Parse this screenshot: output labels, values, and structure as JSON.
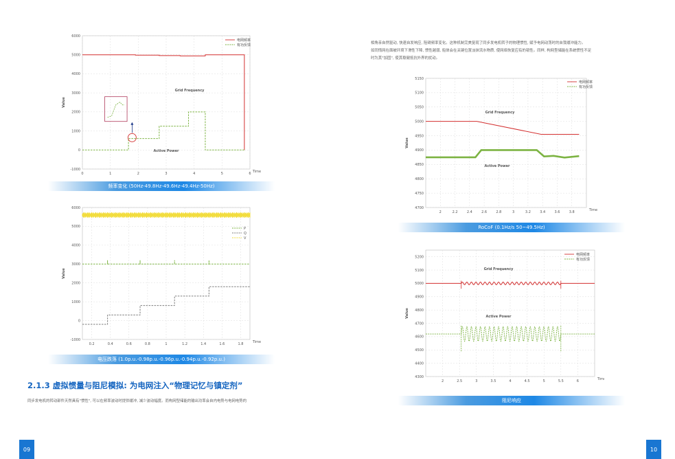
{
  "page": {
    "left_number": "09",
    "right_number": "10"
  },
  "colors": {
    "grid_freq": "#d32f2f",
    "active_power": "#7cb342",
    "yellow": "#f2dc3a",
    "gray": "#7d7d7d",
    "accent": "#1976d2"
  },
  "intro_text": {
    "line1": "相角亲自然驱动, 快速自发响应, 阻碍频率变化。这种机制完美复现了同步发电机转子的物理惯性, 赋予电网动荡时的自我缓冲能力。",
    "line2": "如同惰网在面被环境下滑性下降, 惯性越弱, 船体会在关键位置淡抹流水物质, 使网络恢复应有的韧性。同样, 构网型储能在系统惯性不足",
    "line3": "时为其\"加固\", 使其稳健抵抗外界的扰动。"
  },
  "section": {
    "title": "2.1.3 虚拟惯量与阻尼模拟: 为电网注入“物理记忆与镇定剂”",
    "body": "同步发电机的转动部件天然具有\"惯性\", 可以在频率波动时提供缓冲, 减少波动幅度。而构网型储能的输出功率会自内电势与电网电势的"
  },
  "captions": {
    "freq_change": "频率变化 (50Hz-49.8Hz-49.6Hz-49.4Hz-50Hz)",
    "voltage_sag": "电压跌落 (1.0p.u.-0.98p.u.-0.96p.u.-0.94p.u.-0.92p.u.)",
    "rocof": "RoCoF (0.1Hz/s 50~49.5Hz)",
    "damping": "阻尼响应"
  },
  "chart_data": [
    {
      "id": "freq_change",
      "type": "line",
      "xlabel": "Time",
      "ylabel": "Value",
      "xlim": [
        0,
        6
      ],
      "ylim": [
        -1000,
        6000
      ],
      "x_ticks": [
        "0",
        "1",
        "2",
        "3",
        "4",
        "5",
        "6"
      ],
      "y_ticks": [
        "-1000",
        "0",
        "1000",
        "2000",
        "3000",
        "4000",
        "5000",
        "6000"
      ],
      "legend": [
        "电网频率",
        "有功反馈"
      ],
      "annotations": [
        "Grid Frequency",
        "Active Power"
      ],
      "series": [
        {
          "name": "电网频率",
          "style": "solid",
          "color": "#d32f2f",
          "points": [
            [
              0,
              5000
            ],
            [
              1.9,
              5000
            ],
            [
              1.9,
              4980
            ],
            [
              2.75,
              4980
            ],
            [
              2.75,
              4960
            ],
            [
              3.5,
              4960
            ],
            [
              3.5,
              4940
            ],
            [
              4.4,
              4940
            ],
            [
              4.4,
              5000
            ],
            [
              5.8,
              5000
            ],
            [
              5.8,
              0
            ]
          ]
        },
        {
          "name": "有功反馈",
          "style": "dashed",
          "color": "#7cb342",
          "points": [
            [
              0,
              0
            ],
            [
              1.65,
              0
            ],
            [
              1.65,
              600
            ],
            [
              2.75,
              600
            ],
            [
              2.75,
              1250
            ],
            [
              3.8,
              1250
            ],
            [
              3.8,
              2000
            ],
            [
              4.4,
              2000
            ],
            [
              4.4,
              0
            ],
            [
              5.8,
              0
            ]
          ]
        }
      ]
    },
    {
      "id": "voltage_sag",
      "type": "line",
      "xlabel": "Time",
      "ylabel": "Value",
      "xlim": [
        0.1,
        1.9
      ],
      "ylim": [
        -1000,
        6000
      ],
      "x_ticks": [
        "0.2",
        "0.4",
        "0.6",
        "0.8",
        "1",
        "1.2",
        "1.4",
        "1.6",
        "1.8"
      ],
      "y_ticks": [
        "-1000",
        "0",
        "1000",
        "2000",
        "3000",
        "4000",
        "5000",
        "6000"
      ],
      "legend": [
        "P",
        "Q",
        "V"
      ],
      "series": [
        {
          "name": "V",
          "style": "noisy",
          "color": "#f2dc3a",
          "points": [
            [
              0.1,
              5600
            ],
            [
              1.9,
              5600
            ]
          ]
        },
        {
          "name": "P",
          "style": "dashed",
          "color": "#7cb342",
          "points": [
            [
              0.1,
              3000
            ],
            [
              0.37,
              3000
            ],
            [
              0.37,
              3200
            ],
            [
              0.37,
              3000
            ],
            [
              0.72,
              3000
            ],
            [
              0.72,
              3200
            ],
            [
              0.72,
              3000
            ],
            [
              1.09,
              3000
            ],
            [
              1.09,
              3200
            ],
            [
              1.09,
              3000
            ],
            [
              1.46,
              3000
            ],
            [
              1.46,
              3200
            ],
            [
              1.46,
              3000
            ],
            [
              1.9,
              3000
            ]
          ]
        },
        {
          "name": "Q",
          "style": "dashed",
          "color": "#7d7d7d",
          "points": [
            [
              0.1,
              -200
            ],
            [
              0.37,
              -200
            ],
            [
              0.37,
              300
            ],
            [
              0.72,
              300
            ],
            [
              0.72,
              800
            ],
            [
              1.09,
              800
            ],
            [
              1.09,
              1300
            ],
            [
              1.46,
              1300
            ],
            [
              1.46,
              1800
            ],
            [
              1.9,
              1800
            ]
          ]
        }
      ]
    },
    {
      "id": "rocof",
      "type": "line",
      "xlabel": "Time",
      "ylabel": "Value",
      "xlim": [
        1.8,
        4.0
      ],
      "ylim": [
        4700,
        5150
      ],
      "x_ticks": [
        "2",
        "2.2",
        "2.4",
        "2.6",
        "2.8",
        "3",
        "3.2",
        "3.4",
        "3.6",
        "3.8"
      ],
      "y_ticks": [
        "4700",
        "4750",
        "4800",
        "4850",
        "4900",
        "4950",
        "5000",
        "5050",
        "5100",
        "5150"
      ],
      "legend": [
        "电网频率",
        "有功反馈"
      ],
      "annotations": [
        "Grid Frequency",
        "Active Power"
      ],
      "series": [
        {
          "name": "电网频率",
          "style": "solid",
          "color": "#d32f2f",
          "points": [
            [
              1.8,
              5000
            ],
            [
              2.5,
              5000
            ],
            [
              3.38,
              4955
            ],
            [
              3.9,
              4955
            ]
          ]
        },
        {
          "name": "有功反馈",
          "style": "thick",
          "color": "#7cb342",
          "points": [
            [
              1.8,
              4875
            ],
            [
              2.48,
              4875
            ],
            [
              2.56,
              4900
            ],
            [
              3.32,
              4900
            ],
            [
              3.42,
              4878
            ],
            [
              3.55,
              4880
            ],
            [
              3.7,
              4874
            ],
            [
              3.9,
              4879
            ]
          ]
        }
      ]
    },
    {
      "id": "damping",
      "type": "line",
      "xlabel": "Time",
      "ylabel": "Value",
      "xlim": [
        1.5,
        6.5
      ],
      "ylim": [
        4300,
        5250
      ],
      "x_ticks": [
        "2",
        "2.5",
        "3",
        "3.5",
        "4",
        "4.5",
        "5",
        "5.5",
        "6"
      ],
      "y_ticks": [
        "4300",
        "4400",
        "4500",
        "4600",
        "4700",
        "4800",
        "4900",
        "5000",
        "5100",
        "5200"
      ],
      "legend": [
        "电网频率",
        "有功反馈"
      ],
      "annotations": [
        "Grid Frequency",
        "Active Power"
      ],
      "series": [
        {
          "name": "电网频率",
          "style": "wavy",
          "color": "#d32f2f",
          "points": [
            [
              1.5,
              5000
            ],
            [
              6.5,
              5000
            ]
          ],
          "osc": {
            "from": 2.55,
            "to": 5.5,
            "amp": 10,
            "cycles": 22
          }
        },
        {
          "name": "有功反馈",
          "style": "wavy-dashed",
          "color": "#7cb342",
          "points": [
            [
              1.5,
              4620
            ],
            [
              6.5,
              4620
            ]
          ],
          "osc": {
            "from": 2.55,
            "to": 5.5,
            "amp": 55,
            "cycles": 22
          }
        }
      ]
    }
  ]
}
